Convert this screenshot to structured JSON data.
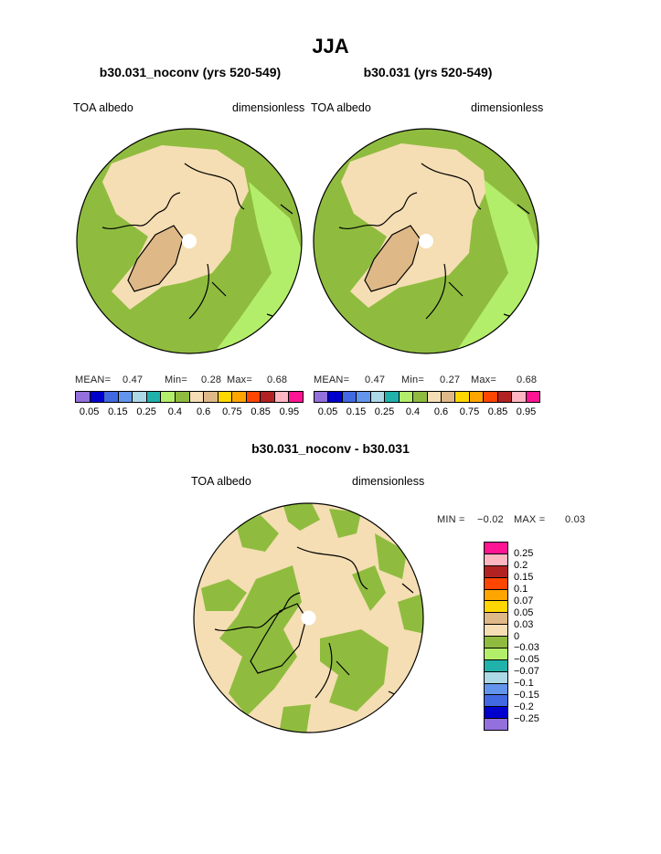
{
  "figure": {
    "title": "JJA"
  },
  "panels": [
    {
      "id": "left",
      "title": "b30.031_noconv (yrs 520-549)",
      "variable": "TOA albedo",
      "units": "dimensionless",
      "stats": {
        "mean_label": "MEAN=",
        "mean": "0.47",
        "min_label": "Min=",
        "min": "0.28",
        "max_label": "Max=",
        "max": "0.68"
      }
    },
    {
      "id": "right",
      "title": "b30.031 (yrs 520-549)",
      "variable": "TOA albedo",
      "units": "dimensionless",
      "stats": {
        "mean_label": "MEAN=",
        "mean": "0.47",
        "min_label": "Min=",
        "min": "0.27",
        "max_label": "Max=",
        "max": "0.68"
      }
    },
    {
      "id": "diff",
      "title": "b30.031_noconv - b30.031",
      "variable": "TOA albedo",
      "units": "dimensionless",
      "stats": {
        "min_label": "MIN =",
        "min": "−0.02",
        "max_label": "MAX =",
        "max": "0.03"
      }
    }
  ],
  "colorbar_abs": {
    "colors": [
      "#9370db",
      "#0000cd",
      "#4169e1",
      "#6495ed",
      "#add8e6",
      "#20b2aa",
      "#b3ee6a",
      "#8fbc3f",
      "#f5deb3",
      "#deb887",
      "#ffd700",
      "#ffa500",
      "#ff4500",
      "#b22222",
      "#ffb6c1",
      "#ff1493"
    ],
    "tick_labels": [
      "0.05",
      "0.15",
      "0.25",
      "0.4",
      "0.6",
      "0.75",
      "0.85",
      "0.95"
    ]
  },
  "colorbar_diff": {
    "colors": [
      "#ff1493",
      "#ffb6c1",
      "#b22222",
      "#ff4500",
      "#ffa500",
      "#ffd700",
      "#deb887",
      "#f5deb3",
      "#8fbc3f",
      "#b3ee6a",
      "#20b2aa",
      "#add8e6",
      "#6495ed",
      "#4169e1",
      "#0000cd",
      "#9370db"
    ],
    "tick_labels": [
      "0.25",
      "0.2",
      "0.15",
      "0.1",
      "0.07",
      "0.05",
      "0.03",
      "0",
      "−0.03",
      "−0.05",
      "−0.07",
      "−0.1",
      "−0.15",
      "−0.2",
      "−0.25"
    ]
  },
  "map_colors": {
    "ocean_green": "#8fbc3f",
    "light_green": "#b3ee6a",
    "tan": "#f5deb3",
    "brown": "#deb887",
    "teal": "#20b2aa"
  }
}
